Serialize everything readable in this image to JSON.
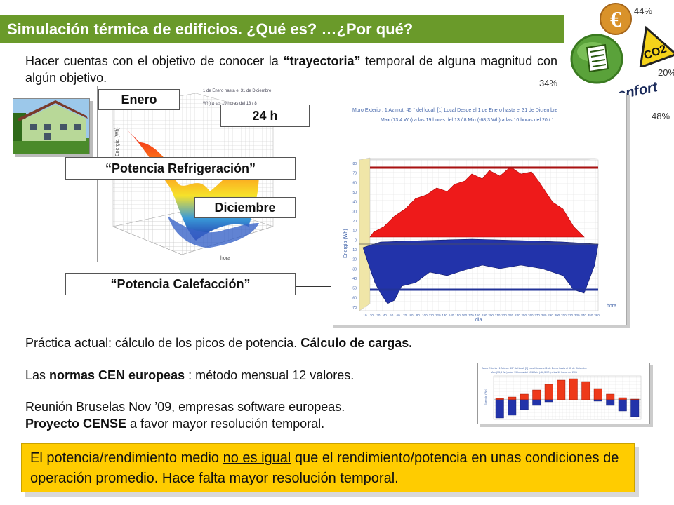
{
  "title": "Simulación térmica de edificios. ¿Qué es? …¿Por qué?",
  "intro": {
    "part1": "Hacer cuentas con el objetivo de conocer la ",
    "bold": "“trayectoria”",
    "part2": " temporal de alguna magnitud con algún objetivo."
  },
  "icons": {
    "pct_euro": "44%",
    "pct_co2": "20%",
    "pct_doc": "34%",
    "pct_confort": "48%",
    "confort_label": "confort",
    "co2_label": "CO2",
    "euro_icon": "euro-icon",
    "document_icon": "document-icon",
    "co2_icon": "co2-warning-icon"
  },
  "labels": {
    "enero": "Enero",
    "hours": "24 h",
    "diciembre": "Diciembre",
    "refrigeracion": "“Potencia Refrigeración”",
    "calefaccion": "“Potencia Calefacción”"
  },
  "surface_chart": {
    "header1": "1 de Enero hasta el 31 de Diciembre",
    "header2": "Wh) a las 19 horas del 13 / 8",
    "axis_y": "Energía (Wh)",
    "axis_x": "hora"
  },
  "area_chart": {
    "header_line1": "Muro Exterior: 1    Azimut: 45 °      del local: [1] Local      Desde el 1 de Enero  hasta el  31 de Diciembre",
    "header_line2": "Max (73,4 Wh) a las 19 horas del 13 / 8          Min (-68,3 Wh) a las 10 horas del 20 / 1",
    "ylabel": "Energía (Wh)",
    "xlabel": "dia",
    "zlabel": "hora",
    "yticks": [
      "80",
      "70",
      "60",
      "50",
      "40",
      "30",
      "20",
      "10",
      "0",
      "-10",
      "-20",
      "-30",
      "-40",
      "-50",
      "-60",
      "-70"
    ],
    "xticks": [
      "10",
      "20",
      "30",
      "40",
      "50",
      "60",
      "70",
      "80",
      "90",
      "100",
      "110",
      "120",
      "130",
      "140",
      "150",
      "160",
      "170",
      "180",
      "190",
      "200",
      "210",
      "220",
      "230",
      "240",
      "250",
      "260",
      "270",
      "280",
      "290",
      "300",
      "310",
      "320",
      "330",
      "340",
      "350",
      "360"
    ]
  },
  "bullets": {
    "practica_normal": "Práctica actual: cálculo de los picos de potencia. ",
    "practica_bold": "Cálculo de cargas.",
    "normas_a": "Las ",
    "normas_bold": "normas CEN europeas",
    "normas_b": " : método mensual 12 valores.",
    "reunion_line1": "Reunión Bruselas Nov ’09, empresas software europeas.",
    "reunion_bold": "Proyecto CENSE",
    "reunion_line2_rest": " a favor mayor resolución temporal."
  },
  "monthly_chart": {
    "header_line1": "Muro Exterior: 1   Azimut: 45°   del local: [1] Local   Desde el 1 de Enero hasta el 31 de Diciembre",
    "header_line2": "Max (73,4 Wh) a las 19 horas del 13/8        Min (-68,3 Wh) a las 10 horas del 20/1",
    "ylabel": "Energía (Wh)"
  },
  "footer_box": {
    "part1": "El potencia/rendimiento medio ",
    "underlined": "no es igual",
    "part2": " que el rendimiento/potencia en unas condiciones de operación promedio. Hace falta mayor resolución temporal."
  },
  "colors": {
    "title_green": "#6a9a2a",
    "heat_red": "#ee1111",
    "cool_blue": "#2233aa",
    "highlight_yellow": "#ffcc00",
    "confort_blue": "#1a2a5a"
  }
}
